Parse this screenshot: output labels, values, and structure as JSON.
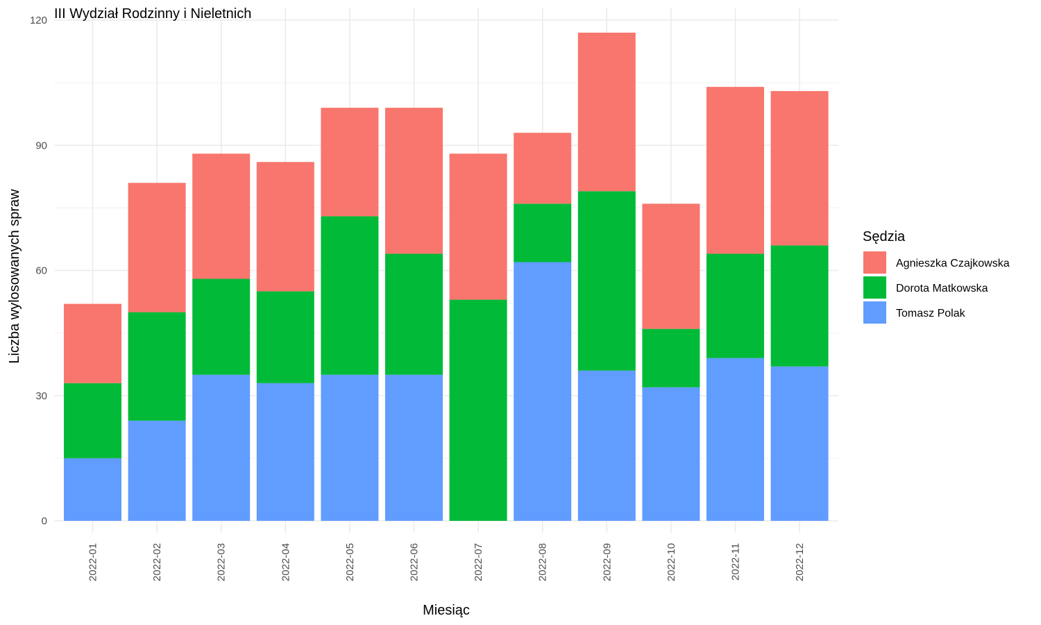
{
  "chart_data": {
    "type": "bar",
    "stacked": true,
    "title": "III Wydział Rodzinny i Nieletnich",
    "xlabel": "Miesiąc",
    "ylabel": "Liczba wylosowanych spraw",
    "ylim": [
      0,
      120
    ],
    "yticks": [
      0,
      30,
      60,
      90,
      120
    ],
    "grid": true,
    "legend_position": "right",
    "legend_title": "Sędzia",
    "categories": [
      "2022-01",
      "2022-02",
      "2022-03",
      "2022-04",
      "2022-05",
      "2022-06",
      "2022-07",
      "2022-08",
      "2022-09",
      "2022-10",
      "2022-11",
      "2022-12"
    ],
    "series": [
      {
        "name": "Tomasz Polak",
        "color": "#619CFF",
        "values": [
          15,
          24,
          35,
          33,
          35,
          35,
          0,
          62,
          36,
          32,
          39,
          37
        ]
      },
      {
        "name": "Dorota Matkowska",
        "color": "#00BA38",
        "values": [
          18,
          26,
          23,
          22,
          38,
          29,
          53,
          14,
          43,
          14,
          25,
          29
        ]
      },
      {
        "name": "Agnieszka Czajkowska",
        "color": "#F8766D",
        "values": [
          19,
          31,
          30,
          31,
          26,
          35,
          35,
          17,
          38,
          30,
          40,
          37
        ]
      }
    ],
    "legend_order": [
      "Agnieszka Czajkowska",
      "Dorota Matkowska",
      "Tomasz Polak"
    ]
  }
}
